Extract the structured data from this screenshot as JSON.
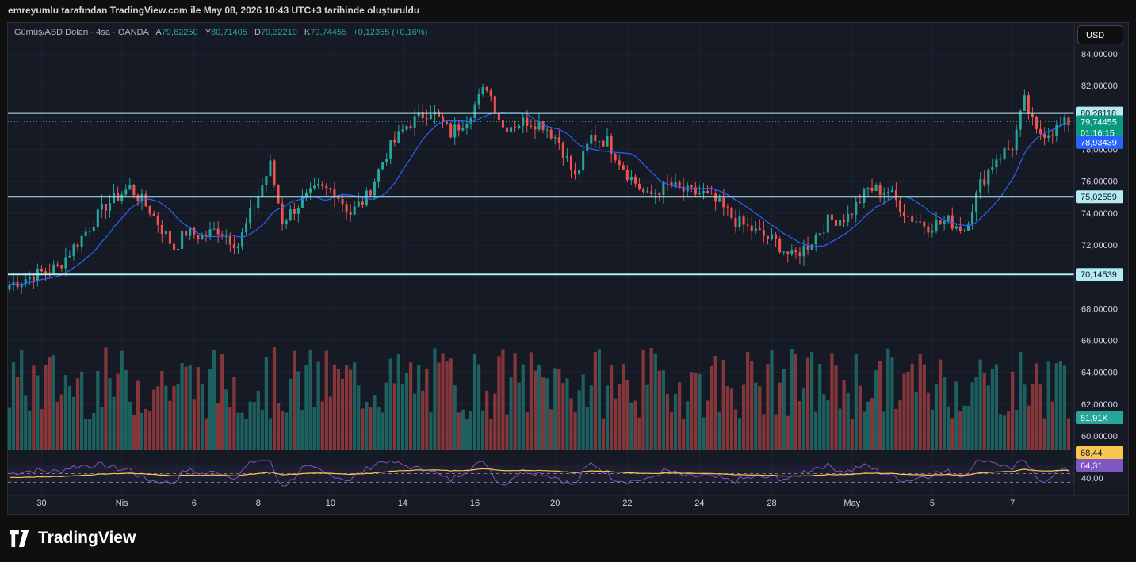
{
  "header": {
    "credit": "emreyumlu tarafından TradingView.com ile May 08, 2026 10:43 UTC+3 tarihinde oluşturuldu"
  },
  "legend": {
    "symbol": "Gümüş/ABD Doları · 4sa · OANDA",
    "o_label": "A",
    "o_value": "79,62250",
    "h_label": "Y",
    "h_value": "80,71405",
    "l_label": "D",
    "l_value": "79,32210",
    "c_label": "K",
    "c_value": "79,74455",
    "change": "+0,12355 (+0,16%)"
  },
  "currency_button": "USD",
  "brand": {
    "name": "TradingView"
  },
  "colors": {
    "up": "#26a69a",
    "down": "#ef5350",
    "ma": "#2962ff",
    "line": "#b2ebf2",
    "rsi": "#7e57c2",
    "rsi_ma": "#f9c74f"
  },
  "chart_data": {
    "type": "candlestick",
    "ylim": [
      66,
      85
    ],
    "y_ticks": [
      "84,00000",
      "82,00000",
      "78,00000",
      "76,00000",
      "74,00000",
      "72,00000",
      "68,00000",
      "66,00000",
      "64,00000",
      "62,00000",
      "60,00000",
      "40,00"
    ],
    "x_ticks": [
      "30",
      "Nis",
      "6",
      "8",
      "10",
      "14",
      "16",
      "20",
      "22",
      "24",
      "28",
      "May",
      "5",
      "7"
    ],
    "horizontal_lines": [
      80.28118,
      75.02559,
      70.14539
    ],
    "price_labels": {
      "line_top": "80,28118",
      "last_price": "79,74455",
      "countdown": "01:16:15",
      "ma_value": "78,93439",
      "line_mid": "75,02559",
      "line_low": "70,14539",
      "volume": "51,91K",
      "rsi_top": "68,44",
      "rsi_value": "64,31"
    },
    "close_anchors": [
      [
        0,
        69.5
      ],
      [
        5,
        70.0
      ],
      [
        12,
        70.6
      ],
      [
        18,
        72.5
      ],
      [
        24,
        74.5
      ],
      [
        30,
        75.6
      ],
      [
        35,
        74.2
      ],
      [
        41,
        71.8
      ],
      [
        44,
        72.8
      ],
      [
        48,
        72.5
      ],
      [
        52,
        73.0
      ],
      [
        57,
        72.0
      ],
      [
        61,
        74.5
      ],
      [
        65,
        77.0
      ],
      [
        68,
        73.5
      ],
      [
        73,
        74.8
      ],
      [
        77,
        75.5
      ],
      [
        81,
        75.4
      ],
      [
        85,
        74.0
      ],
      [
        89,
        75.0
      ],
      [
        94,
        77.8
      ],
      [
        99,
        79.5
      ],
      [
        105,
        80.5
      ],
      [
        110,
        79.0
      ],
      [
        114,
        80.0
      ],
      [
        119,
        82.0
      ],
      [
        123,
        79.4
      ],
      [
        129,
        79.8
      ],
      [
        133,
        79.6
      ],
      [
        137,
        78.5
      ],
      [
        141,
        76.2
      ],
      [
        145,
        78.8
      ],
      [
        149,
        78.5
      ],
      [
        154,
        76.5
      ],
      [
        159,
        75.0
      ],
      [
        164,
        75.8
      ],
      [
        169,
        75.3
      ],
      [
        173,
        75.2
      ],
      [
        177,
        74.5
      ],
      [
        181,
        73.5
      ],
      [
        186,
        72.8
      ],
      [
        191,
        72.2
      ],
      [
        195,
        71.2
      ],
      [
        199,
        72.0
      ],
      [
        204,
        73.5
      ],
      [
        209,
        73.8
      ],
      [
        214,
        75.5
      ],
      [
        219,
        75.4
      ],
      [
        224,
        73.8
      ],
      [
        229,
        73.2
      ],
      [
        234,
        73.5
      ],
      [
        238,
        73.0
      ],
      [
        242,
        75.8
      ],
      [
        246,
        77.5
      ],
      [
        250,
        78.2
      ],
      [
        253,
        81.0
      ],
      [
        256,
        79.0
      ],
      [
        260,
        79.2
      ],
      [
        264,
        79.7
      ]
    ],
    "rsi": {
      "upper": 70,
      "lower": 30,
      "value": 64.31
    }
  }
}
